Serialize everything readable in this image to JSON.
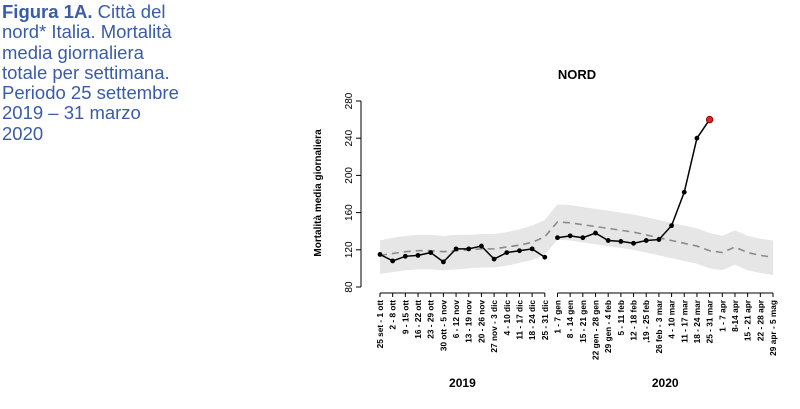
{
  "caption": {
    "bold": "Figura 1A.",
    "text": "Città del nord* Italia. Mortalità media giornaliera totale per settimana. Periodo 25 settembre 2019 – 31 marzo 2020"
  },
  "chart_data": {
    "type": "line",
    "title": "NORD",
    "ylabel": "Mortalità media giornaliera",
    "xlabel": "",
    "ylim": [
      80,
      280
    ],
    "yticks": [
      80,
      120,
      160,
      200,
      240,
      280
    ],
    "grid": false,
    "legend": "none",
    "categories": [
      "25 set - 1 ott",
      "2 - 8 ott",
      "9 - 15 ott",
      "16 - 22 ott",
      "23 - 29 ott",
      "30 ott - 5 nov",
      "6 - 12 nov",
      "13 - 19 nov",
      "20 - 26 nov",
      "27 nov - 3 dic",
      "4 - 10 dic",
      "11 - 17 dic",
      "18 - 24 dic",
      "25 - 31 dic",
      "1 - 7 gen",
      "8 - 14 gen",
      "15 - 21 gen",
      "22 gen - 28 gen",
      "29 gen - 4 feb",
      "5 - 11 feb",
      "12 - 18 feb",
      ",19 - 25 feb",
      "26 feb - 3 mar",
      "4 - 10 mar",
      "11 - 17 mar",
      "18 - 24 mar",
      "25 - 31 mar",
      "1 - 7 apr",
      "8-14 apr",
      "15 - 21 apr",
      "22 - 28 apr",
      "29 apr - 5 mag"
    ],
    "year_groups": [
      {
        "label": "2019",
        "start": 0,
        "end": 13
      },
      {
        "label": "2020",
        "start": 14,
        "end": 31
      }
    ],
    "series": [
      {
        "role": "observed",
        "values": [
          115,
          108,
          113,
          114,
          117,
          107,
          121,
          121,
          124,
          110,
          117,
          119,
          121,
          112,
          133,
          135,
          133,
          138,
          130,
          129,
          127,
          130,
          131,
          146,
          182,
          240,
          260,
          null,
          null,
          null,
          null,
          null
        ],
        "color": "#000000",
        "last_point_color": "#e8201f"
      },
      {
        "role": "baseline",
        "values": [
          114,
          116,
          118,
          119,
          119,
          118,
          119,
          120,
          121,
          121,
          123,
          125,
          128,
          134,
          150,
          149,
          147,
          145,
          143,
          141,
          139,
          136,
          133,
          130,
          127,
          124,
          119,
          117,
          123,
          117,
          114,
          112
        ],
        "color": "#8a8a8a",
        "dash": true
      },
      {
        "role": "band_upper",
        "values": [
          130,
          133,
          135,
          136,
          136,
          135,
          136,
          136,
          137,
          137,
          139,
          142,
          146,
          152,
          169,
          168,
          166,
          164,
          162,
          160,
          158,
          155,
          152,
          149,
          146,
          143,
          138,
          135,
          141,
          135,
          132,
          130
        ]
      },
      {
        "role": "band_lower",
        "values": [
          94,
          96,
          98,
          99,
          99,
          98,
          99,
          100,
          101,
          101,
          103,
          106,
          109,
          115,
          131,
          130,
          128,
          126,
          124,
          122,
          120,
          117,
          114,
          111,
          108,
          105,
          100,
          98,
          104,
          98,
          95,
          93
        ],
        "color": "#e6e6e6"
      }
    ]
  }
}
